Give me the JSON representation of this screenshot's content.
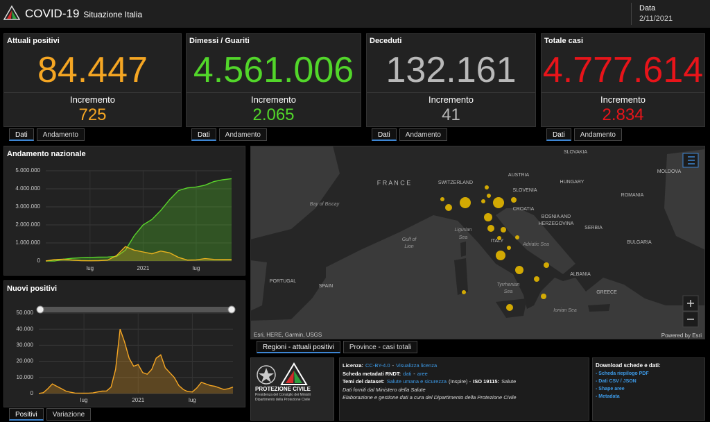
{
  "header": {
    "title": "COVID-19",
    "subtitle": "Situazione Italia",
    "date_label": "Data",
    "date": "2/11/2021"
  },
  "cards": [
    {
      "title": "Attuali positivi",
      "value": "84.447",
      "increment_label": "Incremento",
      "increment": "725",
      "color": "#f5a623",
      "tabs": [
        "Dati",
        "Andamento"
      ]
    },
    {
      "title": "Dimessi / Guariti",
      "value": "4.561.006",
      "increment_label": "Incremento",
      "increment": "2.065",
      "color": "#52d62a",
      "tabs": [
        "Dati",
        "Andamento"
      ]
    },
    {
      "title": "Deceduti",
      "value": "132.161",
      "increment_label": "Incremento",
      "increment": "41",
      "color": "#b9b9b9",
      "tabs": [
        "Dati",
        "Andamento"
      ]
    },
    {
      "title": "Totale casi",
      "value": "4.777.614",
      "increment_label": "Incremento",
      "increment": "2.834",
      "color": "#e8141a",
      "tabs": [
        "Dati",
        "Andamento"
      ]
    }
  ],
  "chart_data": [
    {
      "type": "area",
      "title": "Andamento nazionale",
      "categories": [
        null,
        null,
        null,
        null,
        null,
        "lug",
        null,
        null,
        null,
        null,
        null,
        "2021",
        null,
        null,
        null,
        null,
        null,
        "lug",
        null,
        null,
        null,
        null
      ],
      "series": [
        {
          "color": "#5ad62b",
          "values": [
            0,
            0,
            100000,
            150000,
            180000,
            200000,
            210000,
            220000,
            250000,
            600000,
            1400000,
            2000000,
            2300000,
            2800000,
            3400000,
            3900000,
            4050000,
            4100000,
            4200000,
            4400000,
            4500000,
            4561006
          ]
        },
        {
          "color": "#e8b21e",
          "values": [
            0,
            80000,
            100000,
            50000,
            20000,
            13000,
            20000,
            50000,
            300000,
            800000,
            600000,
            500000,
            400000,
            550000,
            450000,
            200000,
            50000,
            60000,
            130000,
            90000,
            85000,
            84447
          ]
        }
      ],
      "ylim": [
        0,
        5000000
      ],
      "yticks": [
        0,
        {
          "value": 1000000,
          "label": "1.000.000"
        },
        {
          "value": 2000000,
          "label": "2.000.000"
        },
        {
          "value": 3000000,
          "label": "3.000.000"
        },
        {
          "value": 4000000,
          "label": "4.000.000"
        },
        {
          "value": 5000000,
          "label": "5.000.000"
        }
      ],
      "grid": true
    },
    {
      "type": "area",
      "title": "Nuovi positivi",
      "categories": [
        null,
        null,
        null,
        null,
        null,
        null,
        null,
        null,
        null,
        null,
        "lug",
        null,
        null,
        null,
        null,
        null,
        null,
        null,
        null,
        null,
        null,
        null,
        "2021",
        null,
        null,
        null,
        null,
        null,
        null,
        null,
        null,
        null,
        null,
        null,
        "lug",
        null,
        null,
        null,
        null,
        null,
        null,
        null,
        null,
        null
      ],
      "values": [
        100,
        500,
        3000,
        6000,
        4500,
        3000,
        1500,
        800,
        300,
        250,
        200,
        250,
        400,
        1000,
        1500,
        1600,
        4000,
        15000,
        40000,
        32000,
        22000,
        17000,
        18000,
        13000,
        12000,
        15000,
        22000,
        24000,
        16000,
        13000,
        10000,
        5000,
        2500,
        1200,
        1000,
        3500,
        7000,
        6000,
        5000,
        4500,
        3500,
        2500,
        3000,
        4000
      ],
      "color": "#f5a623",
      "ylim": [
        0,
        50000
      ],
      "yticks": [
        0,
        {
          "value": 10000,
          "label": "10.000"
        },
        {
          "value": 20000,
          "label": "20.000"
        },
        {
          "value": 30000,
          "label": "30.000"
        },
        {
          "value": 40000,
          "label": "40.000"
        },
        {
          "value": 50000,
          "label": "50.000"
        }
      ],
      "grid": true,
      "tabs": [
        "Positivi",
        "Variazione"
      ]
    }
  ],
  "map": {
    "labels": [
      "SLOVAKIA",
      "AUSTRIA",
      "HUNGARY",
      "MOLDOVA",
      "SWITZERLAND",
      "F R A N C E",
      "SLOVENIA",
      "ROMANIA",
      "CROATIA",
      "BOSNIA AND",
      "HERZEGOVINA",
      "SERBIA",
      "BULGARIA",
      "ITALY",
      "ALBANIA",
      "GREECE",
      "PORTUGAL",
      "SPAIN",
      "Bay of Biscay",
      "Ligurian",
      "Sea",
      "Gulf of",
      "Lion",
      "Adriatic Sea",
      "Tyrrhenian",
      "Sea",
      "Ionian Sea"
    ],
    "bubble_values": [
      6400,
      6400,
      3600,
      2500,
      900,
      900,
      900,
      1600,
      2500,
      1600,
      900,
      900,
      900,
      4900,
      3600,
      1600,
      1600,
      1600,
      2500,
      900,
      900
    ],
    "bubble_color": "#e5b800",
    "attribution": "Esri, HERE, Garmin, USGS",
    "powered": "Powered by Esri",
    "tabs": [
      "Regioni - attuali positivi",
      "Province - casi totali"
    ]
  },
  "info": {
    "logo": {
      "name": "PROTEZIONE CIVILE",
      "line1": "Presidenza del Consiglio dei Ministri",
      "line2": "Dipartimento della Protezione Civile"
    },
    "lines": [
      [
        {
          "text": "Licenza:",
          "bold": true
        },
        {
          "text": "CC-BY-4.0",
          "link": true
        },
        {
          "text": "-"
        },
        {
          "text": "Visualizza licenza",
          "link": true
        }
      ],
      [
        {
          "text": "Scheda metadati RNDT:",
          "bold": true
        },
        {
          "text": "dati",
          "link": true
        },
        {
          "text": "-"
        },
        {
          "text": "aree",
          "link": true
        }
      ],
      [
        {
          "text": "Temi del dataset:",
          "bold": true
        },
        {
          "text": "Salute umana e sicurezza",
          "link": true
        },
        {
          "text": "(Inspire) -"
        },
        {
          "text": "ISO 19115:",
          "bold": true
        },
        {
          "text": "Salute"
        }
      ],
      [
        {
          "text": "Dati forniti dal Ministero della Salute",
          "italic": true
        }
      ],
      [
        {
          "text": "Elaborazione e gestione dati a cura del Dipartimento della Protezione Civile",
          "italic": true
        }
      ]
    ],
    "download": {
      "title": "Download schede e dati:",
      "items": [
        "- Scheda riepilogo PDF",
        "- Dati CSV / JSON",
        "- Shape aree",
        "- Metadata"
      ]
    }
  }
}
